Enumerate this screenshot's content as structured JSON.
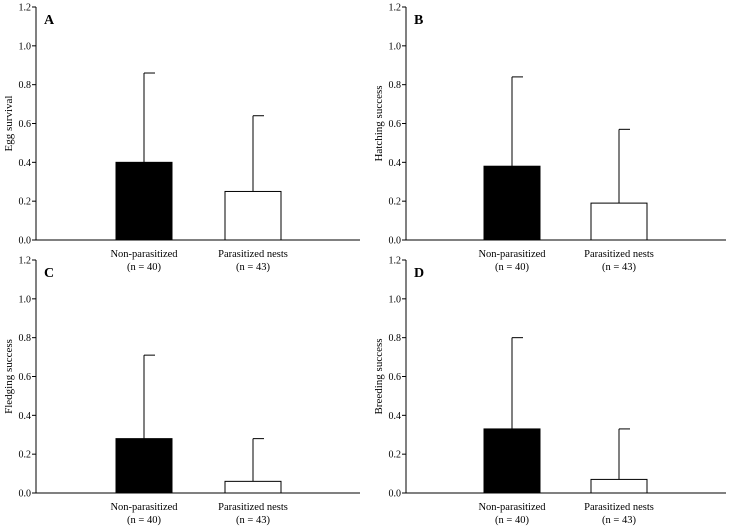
{
  "chart_data": [
    {
      "panel": "A",
      "type": "bar",
      "ylabel": "Egg survival",
      "ylim": [
        0,
        1.2
      ],
      "yticks": [
        "0.0",
        "0.2",
        "0.4",
        "0.6",
        "0.8",
        "1.0",
        "1.2"
      ],
      "categories": [
        "Non-parasitized",
        "Parasitized nests"
      ],
      "category_notes": [
        "(n = 40)",
        "(n = 43)"
      ],
      "values": [
        0.4,
        0.25
      ],
      "error_upper": [
        0.86,
        0.64
      ],
      "colors": [
        "#000000",
        "#ffffff"
      ]
    },
    {
      "panel": "B",
      "type": "bar",
      "ylabel": "Hatching success",
      "ylim": [
        0,
        1.2
      ],
      "yticks": [
        "0.0",
        "0.2",
        "0.4",
        "0.6",
        "0.8",
        "1.0",
        "1.2"
      ],
      "categories": [
        "Non-parasitized",
        "Parasitized nests"
      ],
      "category_notes": [
        "(n = 40)",
        "(n = 43)"
      ],
      "values": [
        0.38,
        0.19
      ],
      "error_upper": [
        0.84,
        0.57
      ],
      "colors": [
        "#000000",
        "#ffffff"
      ]
    },
    {
      "panel": "C",
      "type": "bar",
      "ylabel": "Fledging success",
      "ylim": [
        0,
        1.2
      ],
      "yticks": [
        "0.0",
        "0.2",
        "0.4",
        "0.6",
        "0.8",
        "1.0",
        "1.2"
      ],
      "categories": [
        "Non-parasitized",
        "Parasitized nests"
      ],
      "category_notes": [
        "(n = 40)",
        "(n = 43)"
      ],
      "values": [
        0.28,
        0.06
      ],
      "error_upper": [
        0.71,
        0.28
      ],
      "colors": [
        "#000000",
        "#ffffff"
      ]
    },
    {
      "panel": "D",
      "type": "bar",
      "ylabel": "Breeding success",
      "ylim": [
        0,
        1.2
      ],
      "yticks": [
        "0.0",
        "0.2",
        "0.4",
        "0.6",
        "0.8",
        "1.0",
        "1.2"
      ],
      "categories": [
        "Non-parasitized",
        "Parasitized nests"
      ],
      "category_notes": [
        "(n = 40)",
        "(n = 43)"
      ],
      "values": [
        0.33,
        0.07
      ],
      "error_upper": [
        0.8,
        0.33
      ],
      "colors": [
        "#000000",
        "#ffffff"
      ]
    }
  ]
}
